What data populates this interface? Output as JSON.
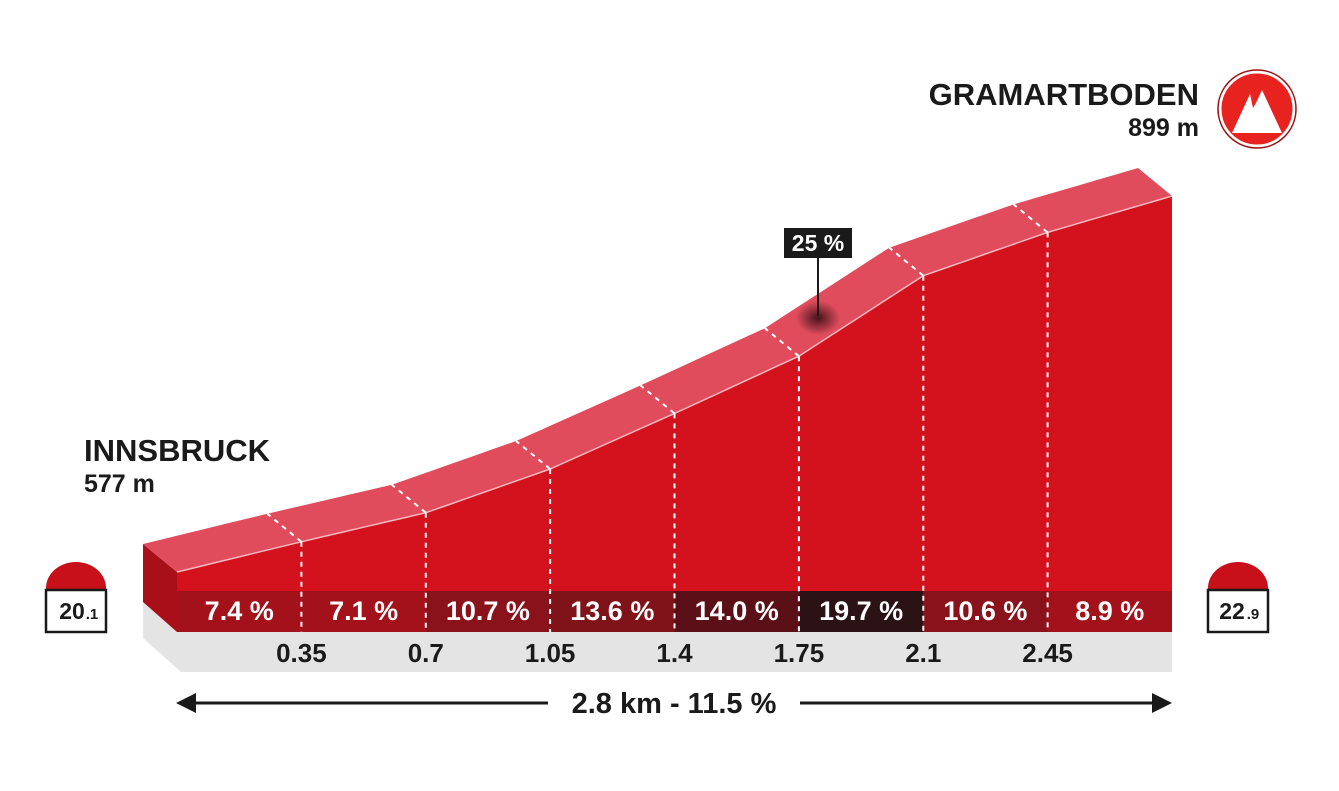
{
  "start": {
    "name": "INNSBRUCK",
    "altitude": "577 m",
    "km_marker_main": "20",
    "km_marker_dec": ".1"
  },
  "finish": {
    "name": "GRAMARTBODEN",
    "altitude": "899 m",
    "km_marker_main": "22",
    "km_marker_dec": ".9",
    "icon": "mountain-summit-icon"
  },
  "max_gradient_badge": "25 %",
  "total_label": "2.8 km - 11.5 %",
  "colors": {
    "profile_face": "#d4121d",
    "profile_top": "#e04c5c",
    "profile_side": "#a80f18",
    "base": "#e4e4e4",
    "summit_icon": "#e8231f"
  },
  "chart_data": {
    "type": "area",
    "title": "",
    "xlabel": "",
    "ylabel": "",
    "segments": [
      {
        "from_km": 0,
        "to_km": 0.35,
        "gradient": "7.4 %",
        "gradient_value": 7.4
      },
      {
        "from_km": 0.35,
        "to_km": 0.7,
        "gradient": "7.1 %",
        "gradient_value": 7.1
      },
      {
        "from_km": 0.7,
        "to_km": 1.05,
        "gradient": "10.7 %",
        "gradient_value": 10.7
      },
      {
        "from_km": 1.05,
        "to_km": 1.4,
        "gradient": "13.6 %",
        "gradient_value": 13.6
      },
      {
        "from_km": 1.4,
        "to_km": 1.75,
        "gradient": "14.0 %",
        "gradient_value": 14.0
      },
      {
        "from_km": 1.75,
        "to_km": 2.1,
        "gradient": "19.7 %",
        "gradient_value": 19.7
      },
      {
        "from_km": 2.1,
        "to_km": 2.45,
        "gradient": "10.6 %",
        "gradient_value": 10.6
      },
      {
        "from_km": 2.45,
        "to_km": 2.8,
        "gradient": "8.9 %",
        "gradient_value": 8.9
      }
    ],
    "km_ticks": [
      "0.35",
      "0.7",
      "1.05",
      "1.4",
      "1.75",
      "2.1",
      "2.45"
    ],
    "total_distance_km": 2.8,
    "average_gradient": 11.5,
    "start_altitude_m": 577,
    "finish_altitude_m": 899
  }
}
